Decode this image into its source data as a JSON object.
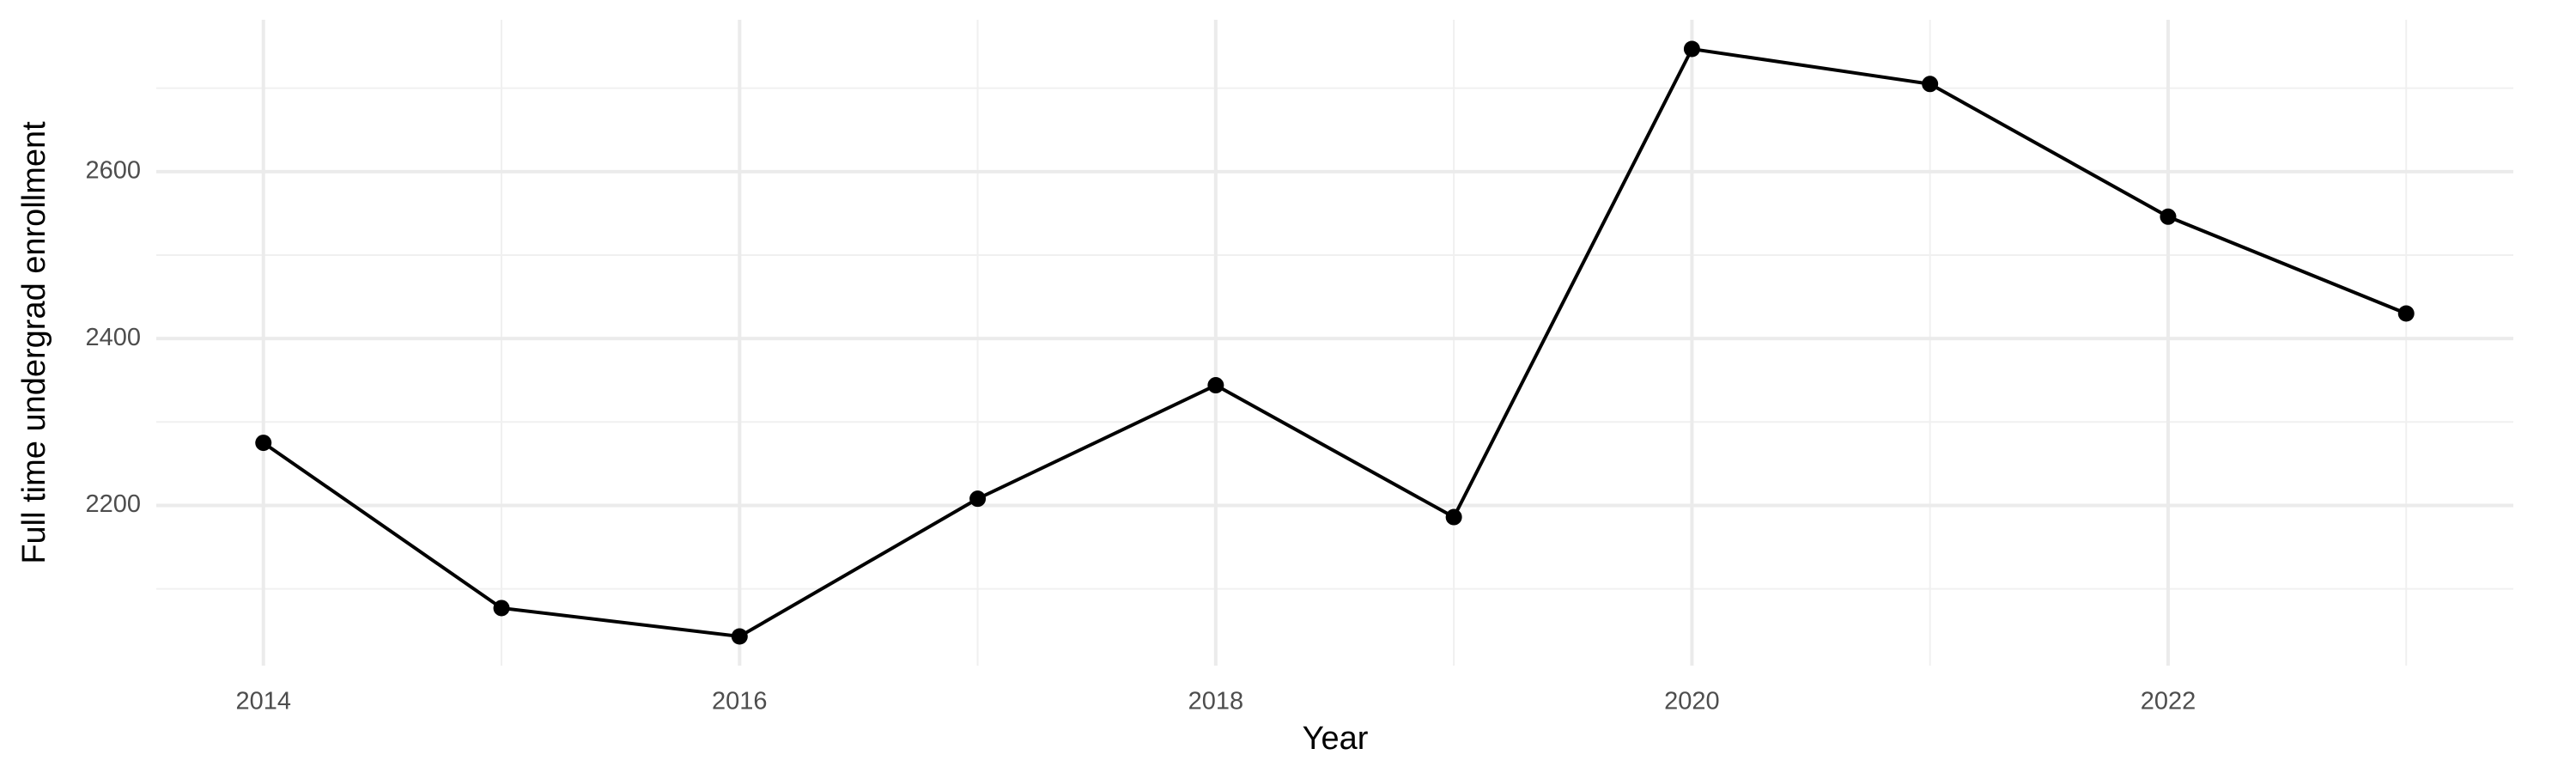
{
  "chart_data": {
    "type": "line",
    "x_label": "Year",
    "y_label": "Full time undergrad enrollment",
    "x": [
      2014,
      2015,
      2016,
      2017,
      2018,
      2019,
      2020,
      2021,
      2022,
      2023
    ],
    "series": [
      {
        "color": "#000000",
        "values": [
          2275,
          2077,
          2043,
          2208,
          2344,
          2186,
          2747,
          2705,
          2546,
          2430
        ]
      }
    ],
    "xlim": [
      2013.55,
      2023.45
    ],
    "xticks": [
      2014,
      2016,
      2018,
      2020,
      2022
    ],
    "minor_xticks": [
      2015,
      2017,
      2019,
      2021,
      2023
    ],
    "ylim": [
      2008,
      2782
    ],
    "yticks": [
      2200,
      2400,
      2600
    ],
    "minor_yticks": [
      2100,
      2300,
      2500,
      2700
    ],
    "grid": true
  }
}
